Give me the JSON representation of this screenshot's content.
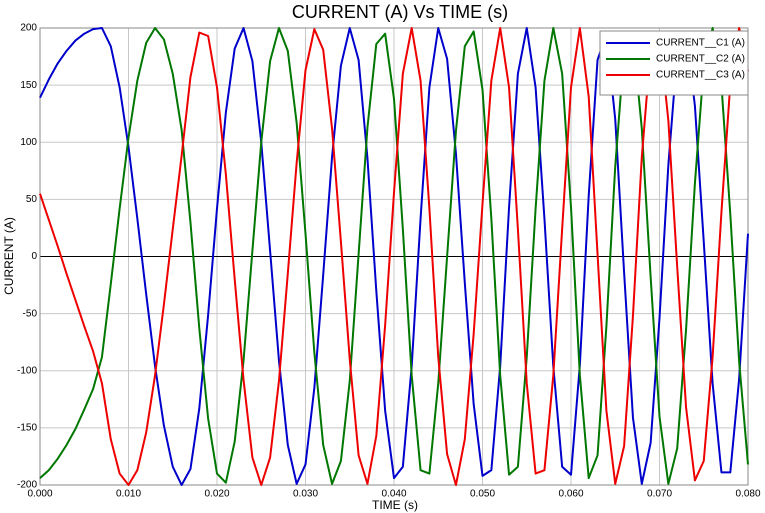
{
  "chart_data": {
    "type": "line",
    "title": "CURRENT (A) Vs TIME (s)",
    "x_label": "TIME (s)",
    "y_label": "CURRENT (A)",
    "x": [
      0,
      0.001,
      0.002,
      0.003,
      0.004,
      0.005,
      0.006,
      0.007,
      0.008,
      0.009,
      0.01,
      0.011,
      0.012,
      0.013,
      0.014,
      0.015,
      0.016,
      0.017,
      0.018,
      0.019,
      0.02,
      0.021,
      0.022,
      0.023,
      0.024,
      0.025,
      0.026,
      0.027,
      0.028,
      0.029,
      0.03,
      0.031,
      0.032,
      0.033,
      0.034,
      0.035,
      0.036,
      0.037,
      0.038,
      0.039,
      0.04,
      0.041,
      0.042,
      0.043,
      0.044,
      0.045,
      0.046,
      0.047,
      0.048,
      0.049,
      0.05,
      0.051,
      0.052,
      0.053,
      0.054,
      0.055,
      0.056,
      0.057,
      0.058,
      0.059,
      0.06,
      0.061,
      0.062,
      0.063,
      0.064,
      0.065,
      0.066,
      0.067,
      0.068,
      0.069,
      0.07,
      0.071,
      0.072,
      0.073,
      0.074,
      0.075,
      0.076,
      0.077,
      0.078,
      0.079,
      0.08
    ],
    "series": [
      {
        "name": "CURRENT__C1 (A)",
        "color": "#0000cc",
        "values": [
          139,
          155,
          169,
          180,
          189,
          195,
          199,
          200,
          184,
          148,
          96,
          33,
          -33,
          -96,
          -148,
          -184,
          -200,
          -186,
          -133,
          -51,
          42,
          126,
          182,
          200,
          171,
          100,
          5,
          -91,
          -165,
          -199,
          -182,
          -115,
          -16,
          87,
          167,
          200,
          172,
          86,
          -30,
          -135,
          -194,
          -184,
          -96,
          33,
          148,
          200,
          173,
          90,
          -23,
          -129,
          -192,
          -187,
          -96,
          43,
          160,
          200,
          148,
          33,
          -96,
          -184,
          -191,
          -95,
          53,
          172,
          195,
          120,
          -14,
          -141,
          -199,
          -163,
          -54,
          80,
          178,
          196,
          132,
          13,
          -111,
          -189,
          -189,
          -107,
          20
        ]
      },
      {
        "name": "CURRENT__C2 (A)",
        "color": "#007700",
        "values": [
          -194,
          -187,
          -177,
          -165,
          -151,
          -134,
          -116,
          -88,
          -24,
          42,
          104,
          154,
          187,
          200,
          190,
          160,
          111,
          30,
          -63,
          -142,
          -190,
          -198,
          -162,
          -91,
          5,
          100,
          171,
          200,
          180,
          117,
          20,
          -84,
          -165,
          -199,
          -179,
          -109,
          2,
          113,
          186,
          195,
          138,
          24,
          -104,
          -187,
          -190,
          -111,
          0,
          110,
          184,
          197,
          146,
          33,
          -104,
          -191,
          -184,
          -88,
          42,
          154,
          200,
          160,
          43,
          -104,
          -194,
          -174,
          -61,
          79,
          180,
          193,
          112,
          -18,
          -140,
          -199,
          -168,
          -64,
          64,
          166,
          200,
          150,
          37,
          -92,
          -182
        ]
      },
      {
        "name": "CURRENT__C3 (A)",
        "color": "#ee0000",
        "values": [
          55,
          32,
          9,
          -15,
          -38,
          -61,
          -83,
          -111,
          -160,
          -190,
          -200,
          -187,
          -154,
          -104,
          -42,
          24,
          88,
          157,
          196,
          193,
          148,
          72,
          -20,
          -108,
          -176,
          -200,
          -176,
          -109,
          -15,
          82,
          163,
          199,
          181,
          112,
          13,
          -90,
          -174,
          -199,
          -157,
          -60,
          56,
          160,
          200,
          154,
          42,
          -88,
          -173,
          -200,
          -160,
          -68,
          46,
          154,
          200,
          148,
          24,
          -111,
          -190,
          -187,
          -104,
          24,
          148,
          200,
          140,
          2,
          -135,
          -199,
          -166,
          -52,
          87,
          182,
          194,
          119,
          -9,
          -132,
          -196,
          -179,
          -88,
          39,
          151,
          200,
          162
        ]
      }
    ],
    "xlim": [
      0,
      0.08
    ],
    "ylim": [
      -200,
      200
    ],
    "xticks": [
      {
        "value": 0,
        "label": "0.000"
      },
      {
        "value": 0.01,
        "label": "0.010"
      },
      {
        "value": 0.02,
        "label": "0.020"
      },
      {
        "value": 0.03,
        "label": "0.030"
      },
      {
        "value": 0.04,
        "label": "0.040"
      },
      {
        "value": 0.05,
        "label": "0.050"
      },
      {
        "value": 0.06,
        "label": "0.060"
      },
      {
        "value": 0.07,
        "label": "0.070"
      },
      {
        "value": 0.08,
        "label": "0.080"
      }
    ],
    "yticks": [
      -200,
      -150,
      -100,
      -50,
      0,
      50,
      100,
      150,
      200
    ],
    "grid": true,
    "legend": "upper right"
  }
}
